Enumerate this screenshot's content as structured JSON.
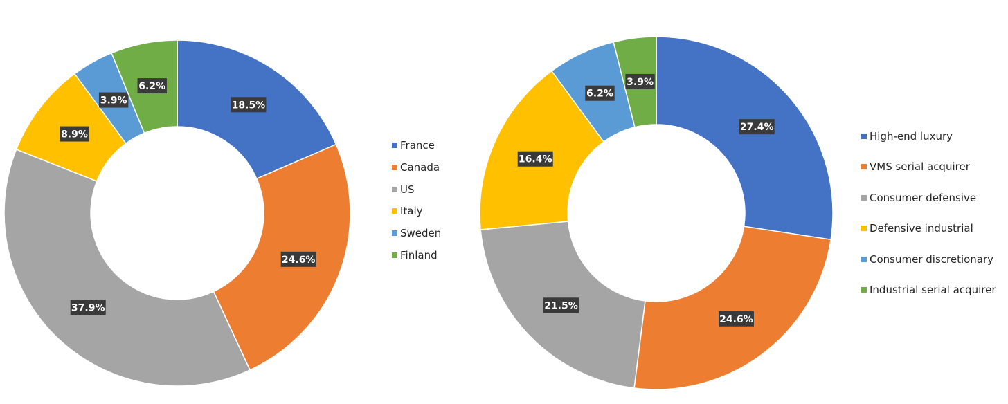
{
  "colors": {
    "blue": "#4472c4",
    "orange": "#ed7d31",
    "gray": "#a5a5a5",
    "yellow": "#ffc000",
    "lightblue": "#5b9bd5",
    "green": "#70ad47",
    "label_bg": "#3a3a3a"
  },
  "chart_data": [
    {
      "type": "donut",
      "categories": [
        "France",
        "Canada",
        "US",
        "Italy",
        "Sweden",
        "Finland"
      ],
      "values": [
        18.5,
        24.6,
        37.9,
        8.9,
        3.9,
        6.2
      ],
      "labels": [
        "18.5%",
        "24.6%",
        "37.9%",
        "8.9%",
        "3.9%",
        "6.2%"
      ],
      "legend_position": "right"
    },
    {
      "type": "donut",
      "categories": [
        "High-end luxury",
        "VMS serial acquirer",
        "Consumer defensive",
        "Defensive industrial",
        "Consumer discretionary",
        "Industrial serial acquirer"
      ],
      "values": [
        27.4,
        24.6,
        21.5,
        16.4,
        6.2,
        3.9
      ],
      "labels": [
        "27.4%",
        "24.6%",
        "21.5%",
        "16.4%",
        "6.2%",
        "3.9%"
      ],
      "legend_position": "right"
    }
  ]
}
